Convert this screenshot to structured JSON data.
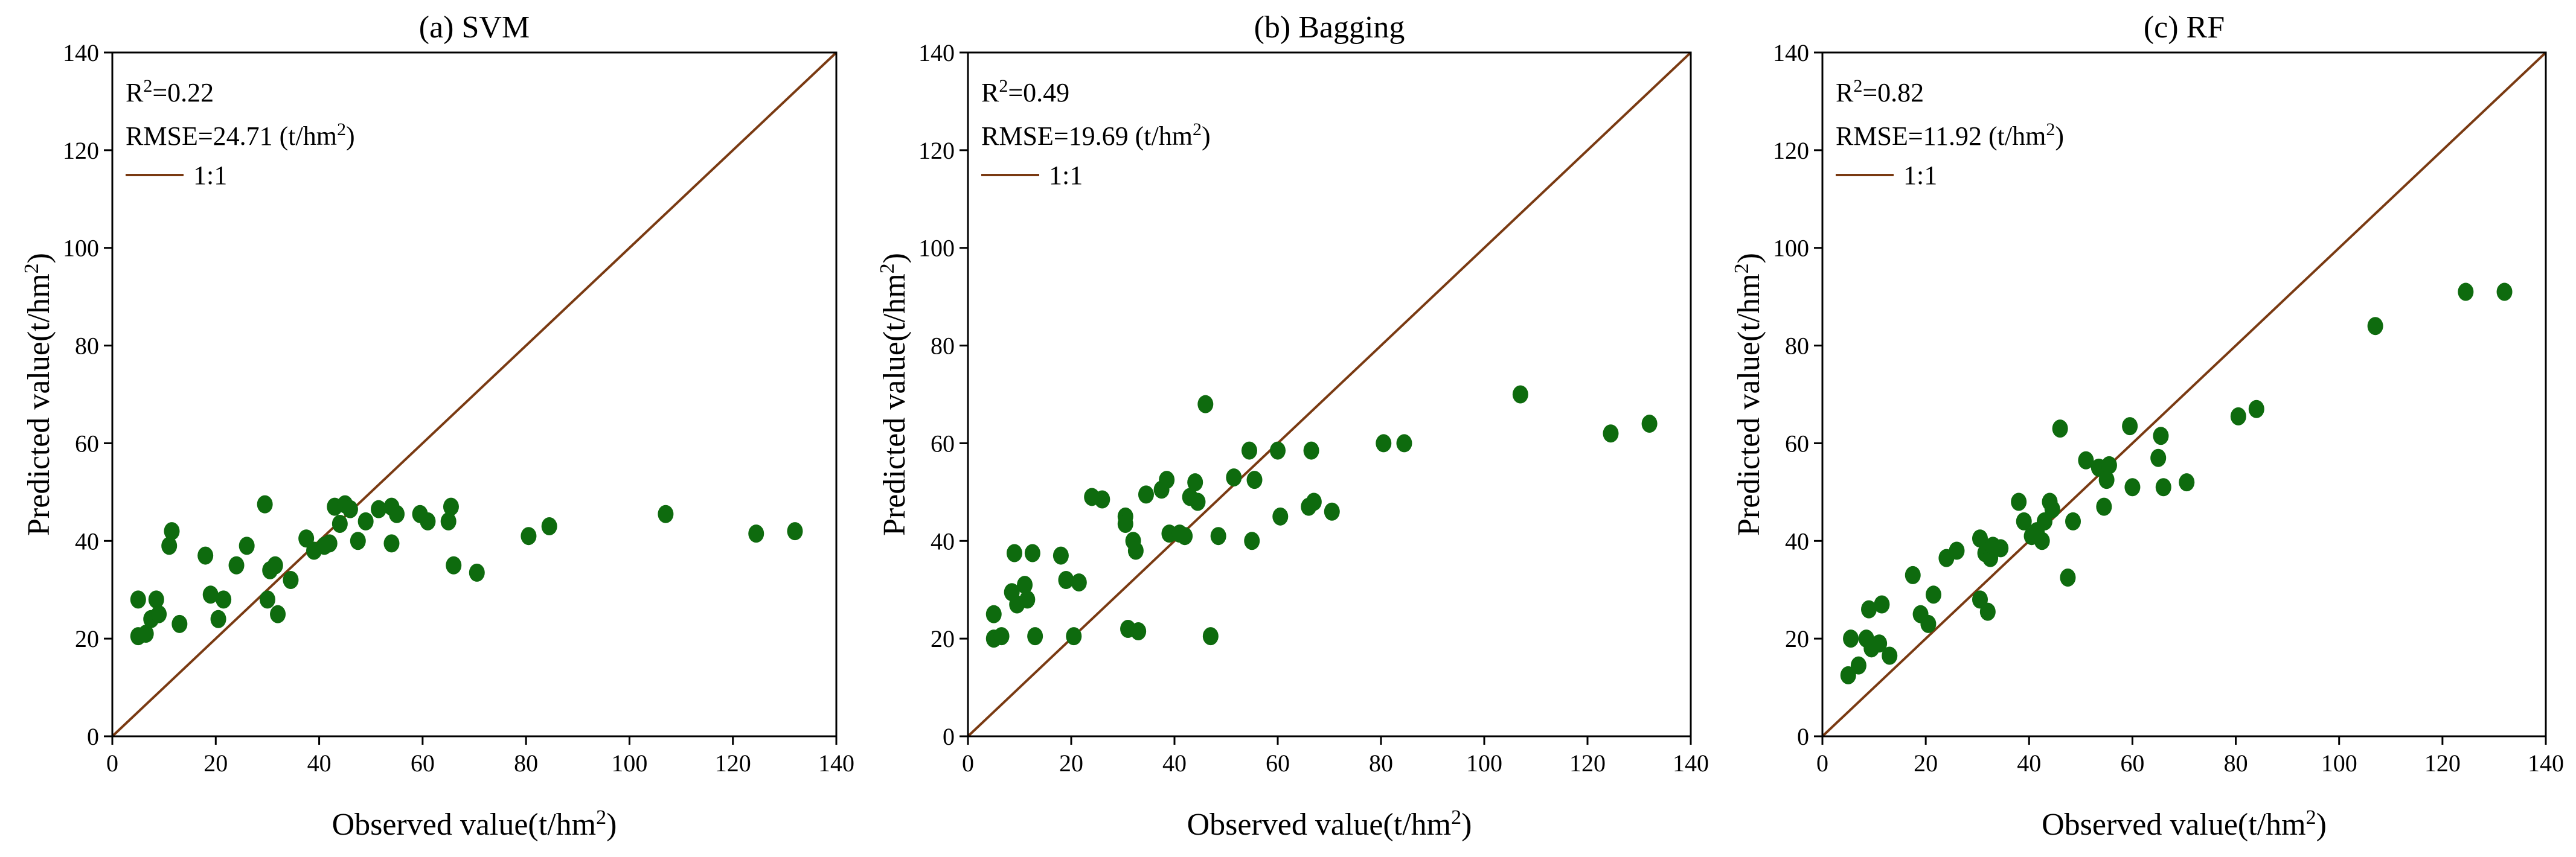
{
  "chart_data": [
    {
      "type": "scatter",
      "title": "(a) SVM",
      "xlabel": "Observed value(t/hm",
      "ylabel": "Predicted value(t/hm",
      "unit_superscript": "2",
      "unit_close": ")",
      "xlim": [
        0,
        140
      ],
      "ylim": [
        0,
        140
      ],
      "xticks": [
        "0",
        "20",
        "40",
        "60",
        "80",
        "100",
        "120",
        "140"
      ],
      "yticks": [
        "0",
        "20",
        "40",
        "60",
        "80",
        "100",
        "120",
        "140"
      ],
      "r2_label": "R",
      "r2_sup": "2",
      "r2_value": "=0.22",
      "rmse_label": "RMSE=24.71 (t/hm",
      "rmse_sup": "2",
      "rmse_close": ")",
      "legend_line": "1:1",
      "line_color": "#7a3a12",
      "point_color": "#0e6b0e",
      "points": [
        [
          5,
          28
        ],
        [
          5,
          20.5
        ],
        [
          6.5,
          21
        ],
        [
          7.5,
          24
        ],
        [
          8.5,
          28
        ],
        [
          9,
          25
        ],
        [
          11,
          39
        ],
        [
          11.5,
          42
        ],
        [
          13,
          23
        ],
        [
          18,
          37
        ],
        [
          19,
          29
        ],
        [
          20.5,
          24
        ],
        [
          21.5,
          28
        ],
        [
          24,
          35
        ],
        [
          26,
          39
        ],
        [
          29.5,
          47.5
        ],
        [
          30,
          28
        ],
        [
          30.5,
          34
        ],
        [
          31.5,
          35
        ],
        [
          32,
          25
        ],
        [
          34.5,
          32
        ],
        [
          37.5,
          40.5
        ],
        [
          39,
          38
        ],
        [
          41,
          39
        ],
        [
          42,
          39.5
        ],
        [
          43,
          47
        ],
        [
          44,
          43.5
        ],
        [
          45,
          47.5
        ],
        [
          46,
          46.5
        ],
        [
          47.5,
          40
        ],
        [
          49,
          44
        ],
        [
          51.5,
          46.5
        ],
        [
          54,
          47
        ],
        [
          54,
          39.5
        ],
        [
          55,
          45.5
        ],
        [
          59.5,
          45.5
        ],
        [
          61,
          44
        ],
        [
          65,
          44
        ],
        [
          65.5,
          47
        ],
        [
          66,
          35
        ],
        [
          70.5,
          33.5
        ],
        [
          80.5,
          41
        ],
        [
          84.5,
          43
        ],
        [
          107,
          45.5
        ],
        [
          124.5,
          41.5
        ],
        [
          132,
          42
        ]
      ]
    },
    {
      "type": "scatter",
      "title": "(b) Bagging",
      "xlabel": "Observed value(t/hm",
      "ylabel": "Predicted value(t/hm",
      "unit_superscript": "2",
      "unit_close": ")",
      "xlim": [
        0,
        140
      ],
      "ylim": [
        0,
        140
      ],
      "xticks": [
        "0",
        "20",
        "40",
        "60",
        "80",
        "100",
        "120",
        "140"
      ],
      "yticks": [
        "0",
        "20",
        "40",
        "60",
        "80",
        "100",
        "120",
        "140"
      ],
      "r2_label": "R",
      "r2_sup": "2",
      "r2_value": "=0.49",
      "rmse_label": "RMSE=19.69 (t/hm",
      "rmse_sup": "2",
      "rmse_close": ")",
      "legend_line": "1:1",
      "line_color": "#7a3a12",
      "point_color": "#0e6b0e",
      "points": [
        [
          5,
          25
        ],
        [
          5,
          20
        ],
        [
          6.5,
          20.5
        ],
        [
          8.5,
          29.5
        ],
        [
          9,
          37.5
        ],
        [
          9.5,
          27
        ],
        [
          11,
          31
        ],
        [
          11.5,
          28
        ],
        [
          12.5,
          37.5
        ],
        [
          13,
          20.5
        ],
        [
          18,
          37
        ],
        [
          19,
          32
        ],
        [
          20.5,
          20.5
        ],
        [
          21.5,
          31.5
        ],
        [
          24,
          49
        ],
        [
          26,
          48.5
        ],
        [
          30.5,
          45
        ],
        [
          30.5,
          43.5
        ],
        [
          31,
          22
        ],
        [
          32,
          40
        ],
        [
          32.5,
          38
        ],
        [
          33,
          21.5
        ],
        [
          34.5,
          49.5
        ],
        [
          37.5,
          50.5
        ],
        [
          38.5,
          52.5
        ],
        [
          39,
          41.5
        ],
        [
          41,
          41.5
        ],
        [
          42,
          41
        ],
        [
          43,
          49
        ],
        [
          44,
          52
        ],
        [
          44.5,
          48
        ],
        [
          46,
          68
        ],
        [
          47,
          20.5
        ],
        [
          48.5,
          41
        ],
        [
          51.5,
          53
        ],
        [
          54.5,
          58.5
        ],
        [
          55,
          40
        ],
        [
          55.5,
          52.5
        ],
        [
          60,
          58.5
        ],
        [
          60.5,
          45
        ],
        [
          66,
          47
        ],
        [
          66.5,
          58.5
        ],
        [
          67,
          48
        ],
        [
          70.5,
          46
        ],
        [
          80.5,
          60
        ],
        [
          84.5,
          60
        ],
        [
          107,
          70
        ],
        [
          124.5,
          62
        ],
        [
          132,
          64
        ]
      ]
    },
    {
      "type": "scatter",
      "title": "(c) RF",
      "xlabel": "Observed value(t/hm",
      "ylabel": "Predicted value(t/hm",
      "unit_superscript": "2",
      "unit_close": ")",
      "xlim": [
        0,
        140
      ],
      "ylim": [
        0,
        140
      ],
      "xticks": [
        "0",
        "20",
        "40",
        "60",
        "80",
        "100",
        "120",
        "140"
      ],
      "yticks": [
        "0",
        "20",
        "40",
        "60",
        "80",
        "100",
        "120",
        "140"
      ],
      "r2_label": "R",
      "r2_sup": "2",
      "r2_value": "=0.82",
      "rmse_label": "RMSE=11.92 (t/hm",
      "rmse_sup": "2",
      "rmse_close": ")",
      "legend_line": "1:1",
      "line_color": "#7a3a12",
      "point_color": "#0e6b0e",
      "points": [
        [
          5,
          12.5
        ],
        [
          5.5,
          20
        ],
        [
          7,
          14.5
        ],
        [
          8.5,
          20
        ],
        [
          9,
          26
        ],
        [
          9.5,
          18
        ],
        [
          11,
          19
        ],
        [
          11.5,
          27
        ],
        [
          13,
          16.5
        ],
        [
          17.5,
          33
        ],
        [
          19,
          25
        ],
        [
          20.5,
          23
        ],
        [
          21.5,
          29
        ],
        [
          24,
          36.5
        ],
        [
          26,
          38
        ],
        [
          30.5,
          40.5
        ],
        [
          30.5,
          28
        ],
        [
          31.5,
          37.5
        ],
        [
          32,
          25.5
        ],
        [
          32.5,
          36.5
        ],
        [
          33,
          39
        ],
        [
          34.5,
          38.5
        ],
        [
          38,
          48
        ],
        [
          39,
          44
        ],
        [
          40.5,
          41
        ],
        [
          41.5,
          42
        ],
        [
          42.5,
          40
        ],
        [
          43,
          44
        ],
        [
          44,
          48
        ],
        [
          44.5,
          46.5
        ],
        [
          46,
          63
        ],
        [
          47.5,
          32.5
        ],
        [
          48.5,
          44
        ],
        [
          51,
          56.5
        ],
        [
          53.5,
          55
        ],
        [
          54.5,
          47
        ],
        [
          55,
          52.5
        ],
        [
          55.5,
          55.5
        ],
        [
          59.5,
          63.5
        ],
        [
          60,
          51
        ],
        [
          65,
          57
        ],
        [
          65.5,
          61.5
        ],
        [
          66,
          51
        ],
        [
          70.5,
          52
        ],
        [
          80.5,
          65.5
        ],
        [
          84,
          67
        ],
        [
          107,
          84
        ],
        [
          124.5,
          91
        ],
        [
          132,
          91
        ]
      ]
    }
  ]
}
